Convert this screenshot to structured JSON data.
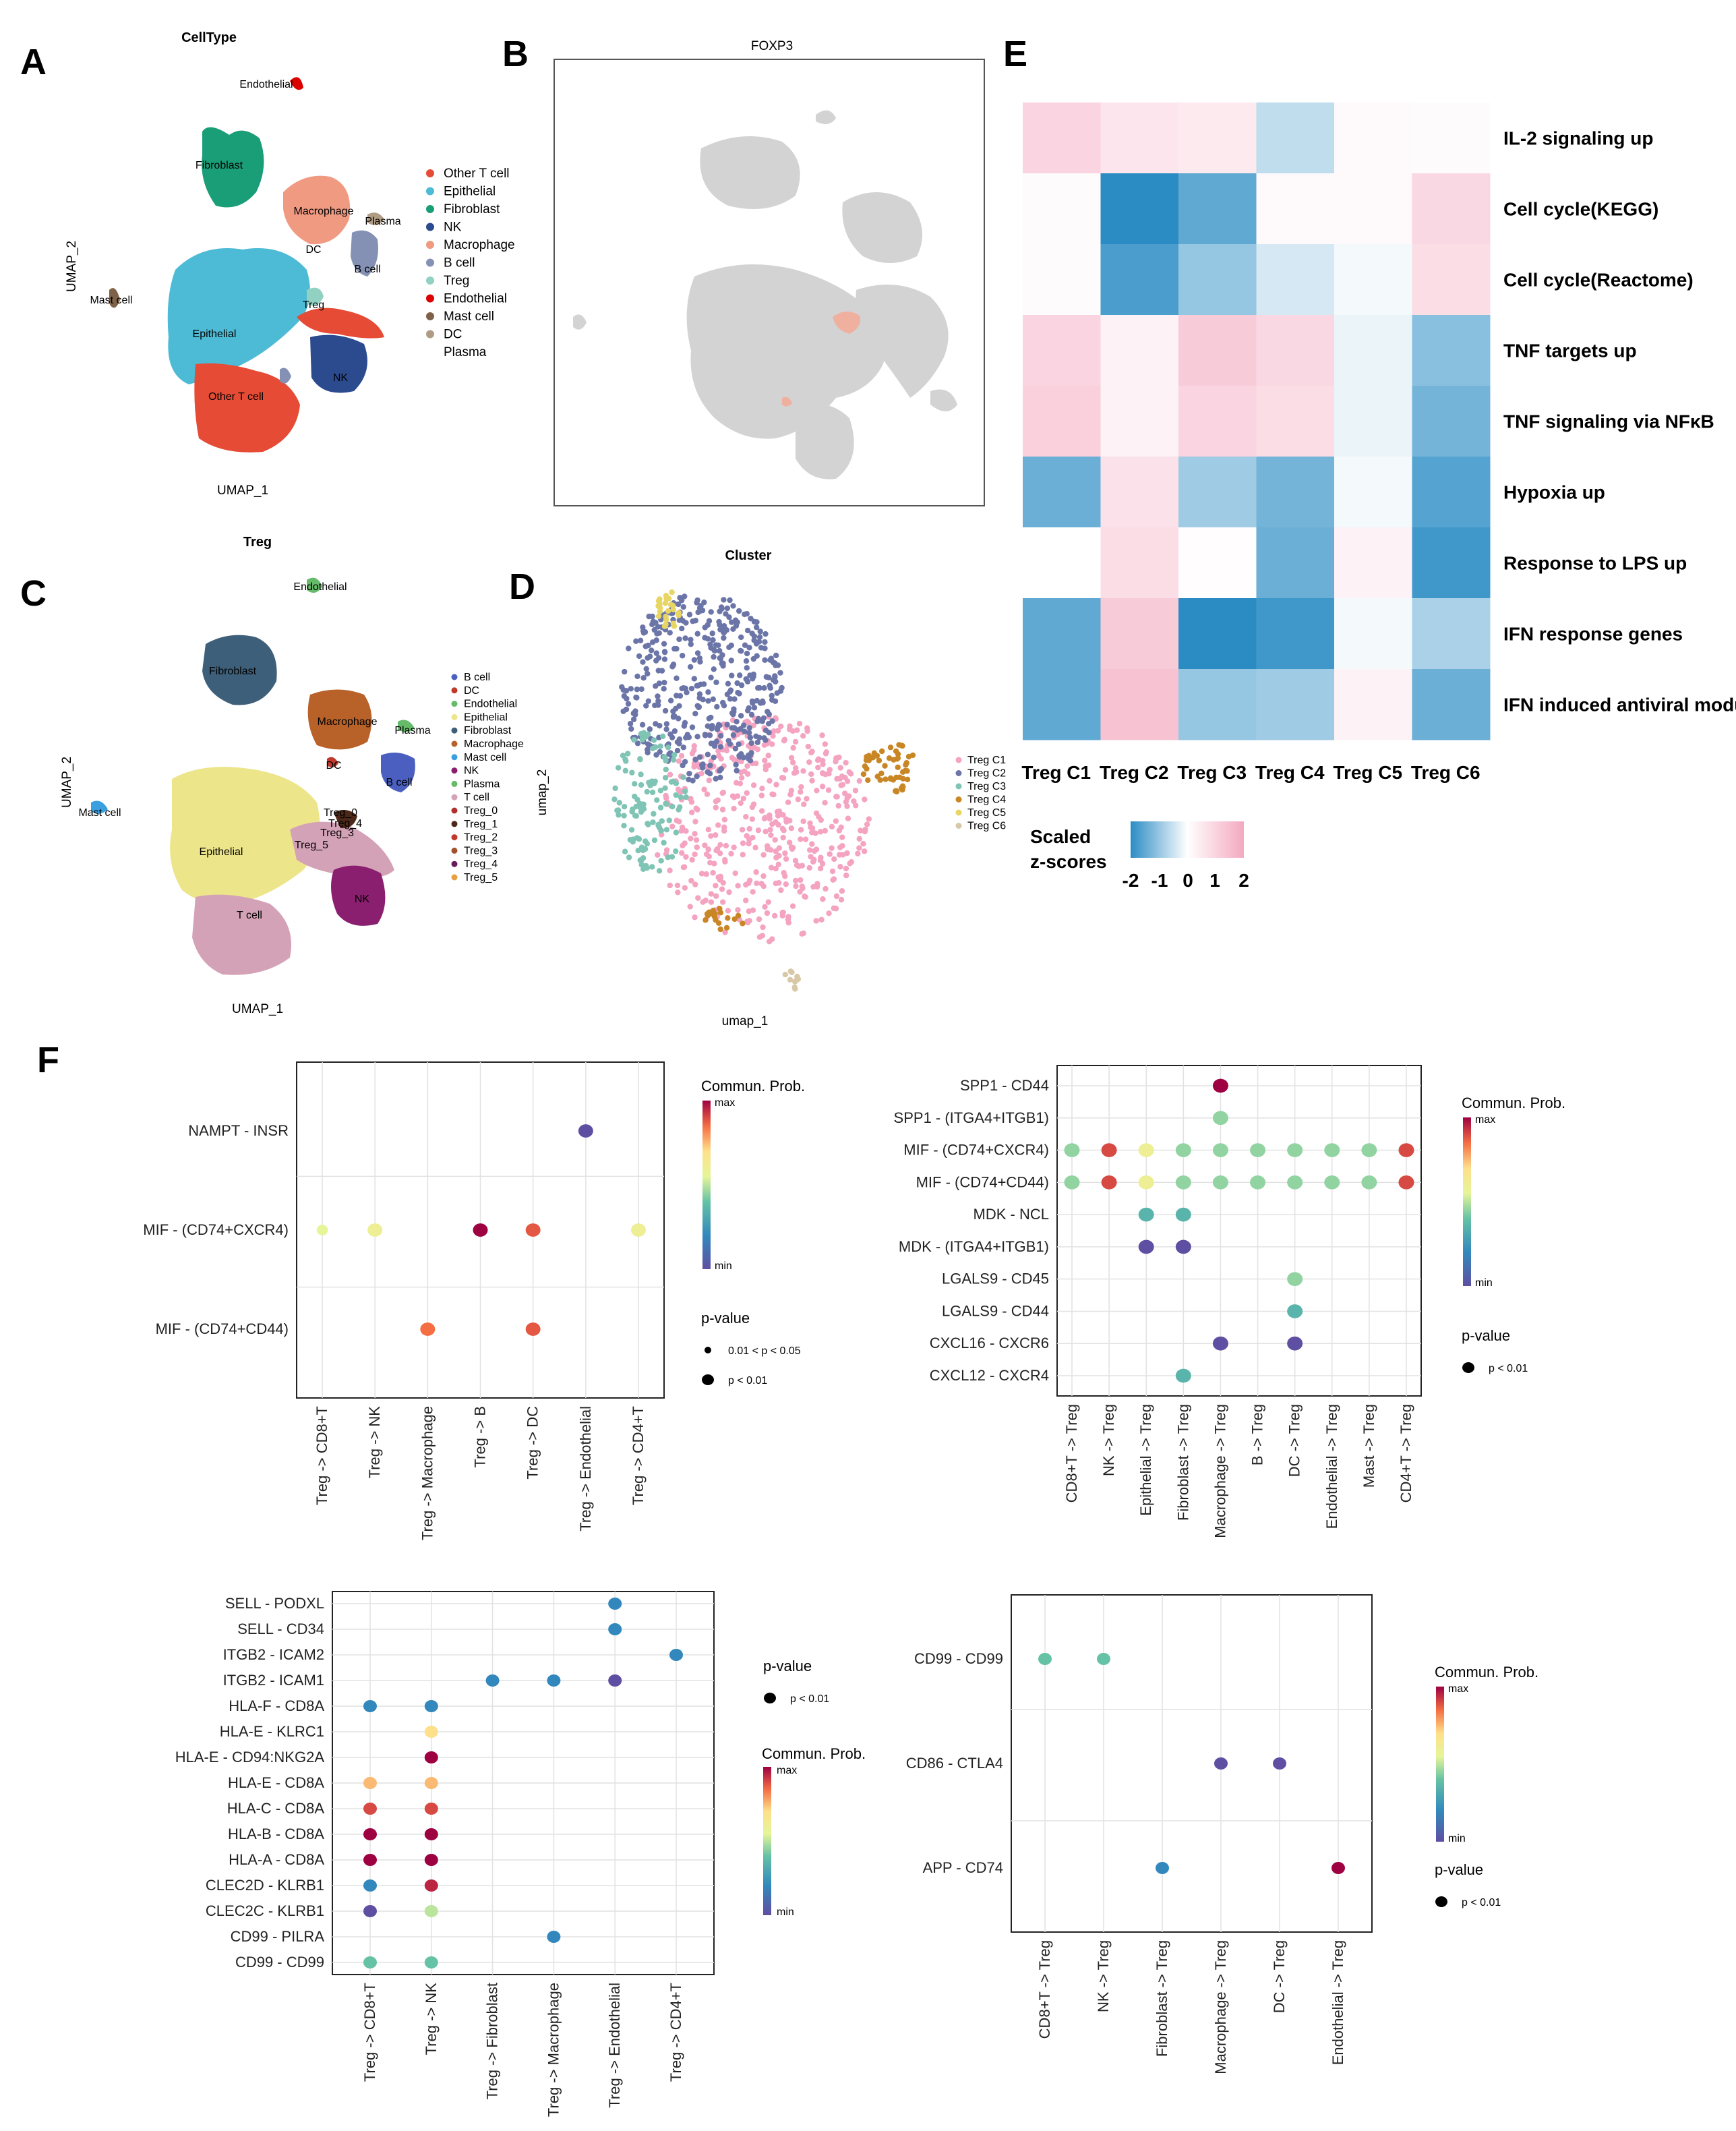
{
  "panel_labels": {
    "A": "A",
    "B": "B",
    "C": "C",
    "D": "D",
    "E": "E",
    "F": "F"
  },
  "colors": {
    "other_t": "#e64b35",
    "epithelial": "#4dbbd5",
    "fibroblast": "#1a9e77",
    "nk": "#2c4b8f",
    "macrophage": "#f09a82",
    "b_cell": "#8491b4",
    "treg": "#91d1c2",
    "endothelial": "#dc0000",
    "mast": "#7e6148",
    "dc": "#b09c85",
    "gray": "#d3d3d3",
    "hm_low": "#2b8cc4",
    "hm_mid": "#ffffff",
    "hm_high": "#f4a9c0"
  },
  "panelA": {
    "title": "CellType",
    "xlabel": "UMAP_1",
    "ylabel": "UMAP_2",
    "legend": [
      "Other T cell",
      "Epithelial",
      "Fibroblast",
      "NK",
      "Macrophage",
      "B cell",
      "Treg",
      "Endothelial",
      "Mast cell",
      "DC",
      "Plasma"
    ],
    "cluster_labels": {
      "endo": "Endothelial",
      "fib": "Fibroblast",
      "mac": "Macrophage",
      "plasma": "Plasma",
      "dc": "DC",
      "bcell": "B cell",
      "mast": "Mast cell",
      "treg": "Treg",
      "epi": "Epithelial",
      "nk": "NK",
      "other": "Other T cell"
    }
  },
  "panelB": {
    "title": "FOXP3"
  },
  "panelC": {
    "title": "Treg",
    "xlabel": "UMAP_1",
    "ylabel": "UMAP_2",
    "legend": [
      "B cell",
      "DC",
      "Endothelial",
      "Epithelial",
      "Fibroblast",
      "Macrophage",
      "Mast cell",
      "NK",
      "Plasma",
      "T cell",
      "Treg_0",
      "Treg_1",
      "Treg_2",
      "Treg_3",
      "Treg_4",
      "Treg_5"
    ],
    "cluster_labels": {
      "endo": "Endothelial",
      "fib": "Fibroblast",
      "mac": "Macrophage",
      "plasma": "Plasma",
      "dc": "DC",
      "bcell": "B cell",
      "mast": "Mast cell",
      "epi": "Epithelial",
      "nk": "NK",
      "tcell": "T cell",
      "treg5": "Treg_5",
      "treg0": "Treg_0",
      "treg4": "Treg_4",
      "treg3": "Treg_3"
    }
  },
  "panelD": {
    "title": "Cluster",
    "xlabel": "umap_1",
    "ylabel": "umap_2",
    "legend": [
      "Treg C1",
      "Treg C2",
      "Treg C3",
      "Treg C4",
      "Treg C5",
      "Treg C6"
    ]
  },
  "chart_data": [
    {
      "type": "heatmap",
      "panel": "E",
      "rows": [
        "IL-2 signaling up",
        "Cell cycle(KEGG)",
        "Cell cycle(Reactome)",
        "TNF targets up",
        "TNF signaling via NFκB",
        "Hypoxia up",
        "Response to LPS up",
        "IFN response genes",
        "IFN induced antiviral modu"
      ],
      "columns": [
        "Treg C1",
        "Treg C2",
        "Treg C3",
        "Treg C4",
        "Treg C5",
        "Treg C6"
      ],
      "values": [
        [
          1.0,
          0.6,
          0.5,
          -0.6,
          0.15,
          0.1
        ],
        [
          0.1,
          -2.0,
          -1.5,
          0.15,
          0.15,
          0.9
        ],
        [
          0.1,
          -1.7,
          -1.0,
          -0.4,
          -0.1,
          0.8
        ],
        [
          1.0,
          0.3,
          1.2,
          0.9,
          -0.2,
          -1.1
        ],
        [
          1.1,
          0.3,
          1.0,
          0.8,
          -0.2,
          -1.3
        ],
        [
          -1.4,
          0.7,
          -0.9,
          -1.3,
          -0.1,
          -1.6
        ],
        [
          0.0,
          0.8,
          0.05,
          -1.4,
          0.3,
          -1.8
        ],
        [
          -1.5,
          1.2,
          -2.0,
          -1.8,
          -0.1,
          -0.8
        ],
        [
          -1.5,
          1.4,
          -1.0,
          -0.9,
          0.3,
          -1.4
        ]
      ],
      "legend_title": [
        "Scaled",
        "z-scores"
      ],
      "scale_ticks": [
        "-2",
        "-1",
        "0",
        "1",
        "2"
      ],
      "range": [
        -2,
        2
      ]
    },
    {
      "type": "scatter",
      "panel": "F1",
      "y_labels": [
        "NAMPT - INSR",
        "MIF - (CD74+CXCR4)",
        "MIF - (CD74+CD44)"
      ],
      "x_labels": [
        "Treg -> CD8+T",
        "Treg -> NK",
        "Treg -> Macrophage",
        "Treg -> B",
        "Treg -> DC",
        "Treg -> Endothelial",
        "Treg -> CD4+T"
      ],
      "points": [
        [
          5,
          0,
          0.0
        ],
        [
          0,
          1,
          0.55
        ],
        [
          1,
          1,
          0.6
        ],
        [
          3,
          1,
          1.0
        ],
        [
          4,
          1,
          0.88
        ],
        [
          6,
          1,
          0.6
        ],
        [
          2,
          2,
          0.85
        ],
        [
          4,
          2,
          0.88
        ]
      ],
      "big": [
        1,
        1,
        1,
        1,
        1,
        1,
        1,
        1
      ],
      "legend": {
        "prob_title": "Commun. Prob.",
        "max": "max",
        "min": "min",
        "p_title": "p-value",
        "p_small": "0.01 < p < 0.05",
        "p_big": "p < 0.01"
      }
    },
    {
      "type": "scatter",
      "panel": "F2",
      "y_labels": [
        "SPP1 - CD44",
        "SPP1 - (ITGA4+ITGB1)",
        "MIF - (CD74+CXCR4)",
        "MIF - (CD74+CD44)",
        "MDK - NCL",
        "MDK - (ITGA4+ITGB1)",
        "LGALS9 - CD45",
        "LGALS9 - CD44",
        "CXCL16 - CXCR6",
        "CXCL12 - CXCR4"
      ],
      "x_labels": [
        "CD8+T -> Treg",
        "NK -> Treg",
        "Epithelial -> Treg",
        "Fibroblast -> Treg",
        "Macrophage -> Treg",
        "B -> Treg",
        "DC -> Treg",
        "Endothelial -> Treg",
        "Mast -> Treg",
        "CD4+T -> Treg"
      ],
      "points": [
        [
          4,
          0,
          1.0
        ],
        [
          4,
          1,
          0.45
        ],
        [
          0,
          2,
          0.45
        ],
        [
          1,
          2,
          0.9
        ],
        [
          2,
          2,
          0.6
        ],
        [
          3,
          2,
          0.45
        ],
        [
          4,
          2,
          0.45
        ],
        [
          5,
          2,
          0.45
        ],
        [
          6,
          2,
          0.45
        ],
        [
          7,
          2,
          0.45
        ],
        [
          8,
          2,
          0.45
        ],
        [
          9,
          2,
          0.9
        ],
        [
          0,
          3,
          0.45
        ],
        [
          1,
          3,
          0.9
        ],
        [
          2,
          3,
          0.6
        ],
        [
          3,
          3,
          0.45
        ],
        [
          4,
          3,
          0.45
        ],
        [
          5,
          3,
          0.45
        ],
        [
          6,
          3,
          0.45
        ],
        [
          7,
          3,
          0.45
        ],
        [
          8,
          3,
          0.45
        ],
        [
          9,
          3,
          0.9
        ],
        [
          2,
          4,
          0.35
        ],
        [
          3,
          4,
          0.35
        ],
        [
          2,
          5,
          0.0
        ],
        [
          3,
          5,
          0.0
        ],
        [
          6,
          6,
          0.45
        ],
        [
          6,
          7,
          0.35
        ],
        [
          4,
          8,
          0.0
        ],
        [
          6,
          8,
          0.0
        ],
        [
          3,
          9,
          0.35
        ]
      ],
      "legend": {
        "prob_title": "Commun. Prob.",
        "max": "max",
        "min": "min",
        "p_title": "p-value",
        "p_big": "p < 0.01"
      }
    },
    {
      "type": "scatter",
      "panel": "F3",
      "y_labels": [
        "SELL - PODXL",
        "SELL - CD34",
        "ITGB2 - ICAM2",
        "ITGB2 - ICAM1",
        "HLA-F - CD8A",
        "HLA-E - KLRC1",
        "HLA-E - CD94:NKG2A",
        "HLA-E - CD8A",
        "HLA-C - CD8A",
        "HLA-B - CD8A",
        "HLA-A - CD8A",
        "CLEC2D - KLRB1",
        "CLEC2C - KLRB1",
        "CD99 - PILRA",
        "CD99 - CD99"
      ],
      "x_labels": [
        "Treg -> CD8+T",
        "Treg -> NK",
        "Treg -> Fibroblast",
        "Treg -> Macrophage",
        "Treg -> Endothelial",
        "Treg -> CD4+T"
      ],
      "points": [
        [
          4,
          0,
          0.2
        ],
        [
          4,
          1,
          0.2
        ],
        [
          5,
          2,
          0.2
        ],
        [
          2,
          3,
          0.2
        ],
        [
          3,
          3,
          0.2
        ],
        [
          4,
          3,
          0.0
        ],
        [
          0,
          4,
          0.2
        ],
        [
          1,
          4,
          0.2
        ],
        [
          1,
          5,
          0.7
        ],
        [
          1,
          6,
          1.0
        ],
        [
          0,
          7,
          0.75
        ],
        [
          1,
          7,
          0.75
        ],
        [
          0,
          8,
          0.9
        ],
        [
          1,
          8,
          0.9
        ],
        [
          0,
          9,
          1.0
        ],
        [
          1,
          9,
          1.0
        ],
        [
          0,
          10,
          1.0
        ],
        [
          1,
          10,
          1.0
        ],
        [
          0,
          11,
          0.2
        ],
        [
          1,
          11,
          0.95
        ],
        [
          0,
          12,
          0.0
        ],
        [
          1,
          12,
          0.5
        ],
        [
          3,
          13,
          0.2
        ],
        [
          0,
          14,
          0.4
        ],
        [
          1,
          14,
          0.4
        ]
      ],
      "legend": {
        "prob_title": "Commun. Prob.",
        "max": "max",
        "min": "min",
        "p_title": "p-value",
        "p_big": "p < 0.01"
      }
    },
    {
      "type": "scatter",
      "panel": "F4",
      "y_labels": [
        "CD99 - CD99",
        "CD86 - CTLA4",
        "APP - CD74"
      ],
      "x_labels": [
        "CD8+T -> Treg",
        "NK -> Treg",
        "Fibroblast -> Treg",
        "Macrophage -> Treg",
        "DC -> Treg",
        "Endothelial -> Treg"
      ],
      "points": [
        [
          0,
          0,
          0.4
        ],
        [
          1,
          0,
          0.4
        ],
        [
          3,
          1,
          0.0
        ],
        [
          4,
          1,
          0.0
        ],
        [
          2,
          2,
          0.2
        ],
        [
          5,
          2,
          1.0
        ]
      ],
      "legend": {
        "prob_title": "Commun. Prob.",
        "max": "max",
        "min": "min",
        "p_title": "p-value",
        "p_big": "p < 0.01"
      }
    }
  ]
}
